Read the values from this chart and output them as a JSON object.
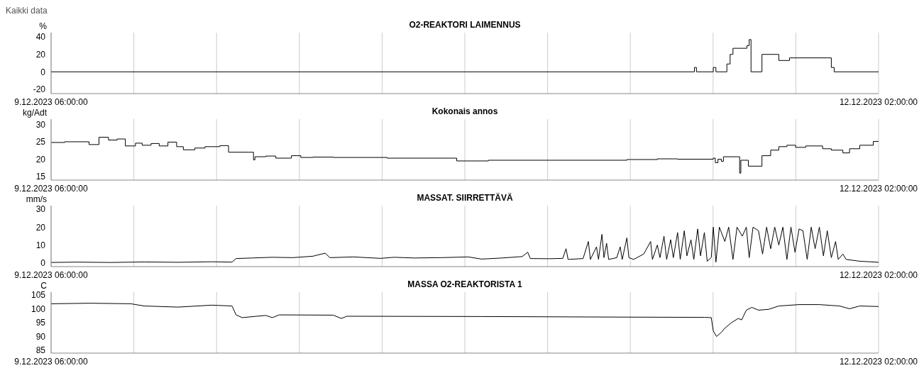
{
  "chart_data": [
    {
      "type": "step",
      "title": "O2-REAKTORI LAIMENNUS",
      "ylabel": "%",
      "annotations": [
        "Kaikki data"
      ],
      "grid": "x",
      "xlim": [
        "2023-12-09T06:00",
        "2023-12-12T02:00"
      ],
      "xticks": [
        {
          "value": "2023-12-09T06:00",
          "label": "9.12.2023 06:00:00"
        },
        {
          "value": "2023-12-09T12:48",
          "label": null
        },
        {
          "value": "2023-12-09T19:36",
          "label": null
        },
        {
          "value": "2023-12-10T02:24",
          "label": null
        },
        {
          "value": "2023-12-10T09:12",
          "label": null
        },
        {
          "value": "2023-12-10T16:00",
          "label": null
        },
        {
          "value": "2023-12-10T22:48",
          "label": null
        },
        {
          "value": "2023-12-11T05:36",
          "label": null
        },
        {
          "value": "2023-12-11T12:24",
          "label": null
        },
        {
          "value": "2023-12-11T19:12",
          "label": null
        },
        {
          "value": "2023-12-12T02:00",
          "label": "12.12.2023 02:00:00"
        }
      ],
      "ylim": [
        -25,
        45
      ],
      "yticks": [
        -20,
        0,
        20,
        40
      ],
      "x": [
        "2023-12-09T06:00",
        "2023-12-11T10:52",
        "2023-12-11T11:02",
        "2023-12-11T12:25",
        "2023-12-11T12:38",
        "2023-12-11T13:32",
        "2023-12-11T13:48",
        "2023-12-11T14:02",
        "2023-12-11T15:11",
        "2023-12-11T15:22",
        "2023-12-11T15:31",
        "2023-12-11T16:25",
        "2023-12-11T17:48",
        "2023-12-11T18:41",
        "2023-12-11T22:07",
        "2023-12-11T22:21",
        "2023-12-12T02:00"
      ],
      "series": [
        {
          "color": "#000000",
          "values": [
            0,
            5,
            0,
            5,
            0,
            9,
            20,
            27,
            30,
            37,
            0,
            20,
            13,
            16,
            5,
            0,
            0
          ]
        }
      ]
    },
    {
      "type": "step",
      "title": "Kokonais annos",
      "ylabel": "kg/Adt",
      "grid": "x",
      "xlim": [
        "2023-12-09T06:00",
        "2023-12-12T02:00"
      ],
      "xticks": [
        {
          "value": "2023-12-09T06:00",
          "label": "9.12.2023 06:00:00"
        },
        {
          "value": "2023-12-09T12:48",
          "label": null
        },
        {
          "value": "2023-12-09T19:36",
          "label": null
        },
        {
          "value": "2023-12-10T02:24",
          "label": null
        },
        {
          "value": "2023-12-10T09:12",
          "label": null
        },
        {
          "value": "2023-12-10T16:00",
          "label": null
        },
        {
          "value": "2023-12-10T22:48",
          "label": null
        },
        {
          "value": "2023-12-11T05:36",
          "label": null
        },
        {
          "value": "2023-12-11T12:24",
          "label": null
        },
        {
          "value": "2023-12-11T19:12",
          "label": null
        },
        {
          "value": "2023-12-12T02:00",
          "label": "12.12.2023 02:00:00"
        }
      ],
      "ylim": [
        14,
        31.5
      ],
      "yticks": [
        15,
        20,
        25,
        30
      ],
      "x": [
        "2023-12-09T06:00",
        "2023-12-09T07:07",
        "2023-12-09T09:07",
        "2023-12-09T09:56",
        "2023-12-09T10:43",
        "2023-12-09T11:26",
        "2023-12-09T12:06",
        "2023-12-09T12:56",
        "2023-12-09T13:29",
        "2023-12-09T14:13",
        "2023-12-09T14:53",
        "2023-12-09T15:36",
        "2023-12-09T16:19",
        "2023-12-09T16:52",
        "2023-12-09T17:49",
        "2023-12-09T18:39",
        "2023-12-09T19:52",
        "2023-12-09T20:35",
        "2023-12-09T22:38",
        "2023-12-09T22:45",
        "2023-12-09T23:38",
        "2023-12-10T00:28",
        "2023-12-10T01:45",
        "2023-12-10T02:31",
        "2023-12-10T03:31",
        "2023-12-10T05:11",
        "2023-12-10T09:37",
        "2023-12-10T15:20",
        "2023-12-10T17:56",
        "2023-12-11T05:19",
        "2023-12-11T07:49",
        "2023-12-11T09:29",
        "2023-12-11T12:25",
        "2023-12-11T12:35",
        "2023-12-11T12:48",
        "2023-12-11T13:05",
        "2023-12-11T13:15",
        "2023-12-11T14:35",
        "2023-12-11T14:41",
        "2023-12-11T15:18",
        "2023-12-11T16:25",
        "2023-12-11T17:08",
        "2023-12-11T17:48",
        "2023-12-11T18:28",
        "2023-12-11T19:11",
        "2023-12-11T20:01",
        "2023-12-11T21:24",
        "2023-12-11T22:07",
        "2023-12-11T23:04",
        "2023-12-11T23:37",
        "2023-12-12T00:27",
        "2023-12-12T01:34",
        "2023-12-12T02:00"
      ],
      "series": [
        {
          "color": "#000000",
          "values": [
            24.8,
            25,
            24.2,
            26.3,
            25.5,
            25.8,
            23.8,
            24.6,
            24,
            24.5,
            23.8,
            24.9,
            23.6,
            22.7,
            23.2,
            23.6,
            23.9,
            22,
            19.8,
            20.7,
            20.9,
            20.3,
            21,
            20.5,
            20.6,
            20.5,
            20.3,
            19.5,
            19.7,
            19.9,
            20.1,
            20,
            20.3,
            19,
            20,
            19.4,
            20.7,
            16,
            19.7,
            18,
            21,
            22.6,
            23.6,
            24,
            23.4,
            23.8,
            23,
            22.6,
            21.8,
            23,
            24,
            25.1,
            25
          ]
        }
      ]
    },
    {
      "type": "line",
      "title": "MASSAT. SIIRRETTÄVÄ",
      "ylabel": "mm/s",
      "grid": "x",
      "xlim": [
        "2023-12-09T06:00",
        "2023-12-12T02:00"
      ],
      "xticks": [
        {
          "value": "2023-12-09T06:00",
          "label": "9.12.2023 06:00:00"
        },
        {
          "value": "2023-12-09T12:48",
          "label": null
        },
        {
          "value": "2023-12-09T19:36",
          "label": null
        },
        {
          "value": "2023-12-10T02:24",
          "label": null
        },
        {
          "value": "2023-12-10T09:12",
          "label": null
        },
        {
          "value": "2023-12-10T16:00",
          "label": null
        },
        {
          "value": "2023-12-10T22:48",
          "label": null
        },
        {
          "value": "2023-12-11T05:36",
          "label": null
        },
        {
          "value": "2023-12-11T12:24",
          "label": null
        },
        {
          "value": "2023-12-11T19:12",
          "label": null
        },
        {
          "value": "2023-12-12T02:00",
          "label": "12.12.2023 02:00:00"
        }
      ],
      "ylim": [
        -2,
        32
      ],
      "yticks": [
        0,
        10,
        20,
        30
      ],
      "x": [
        "2023-12-09T06:00",
        "2023-12-09T08:07",
        "2023-12-09T10:53",
        "2023-12-09T13:39",
        "2023-12-09T16:26",
        "2023-12-09T19:12",
        "2023-12-09T20:52",
        "2023-12-09T21:12",
        "2023-12-09T22:32",
        "2023-12-10T00:11",
        "2023-12-10T01:52",
        "2023-12-10T03:31",
        "2023-12-10T04:31",
        "2023-12-10T04:55",
        "2023-12-10T06:51",
        "2023-12-10T09:04",
        "2023-12-10T10:11",
        "2023-12-10T11:50",
        "2023-12-10T14:04",
        "2023-12-10T16:17",
        "2023-12-10T17:23",
        "2023-12-10T19:03",
        "2023-12-10T20:43",
        "2023-12-10T21:10",
        "2023-12-10T21:23",
        "2023-12-10T22:56",
        "2023-12-11T00:03",
        "2023-12-11T00:19",
        "2023-12-11T00:29",
        "2023-12-11T01:43",
        "2023-12-11T02:09",
        "2023-12-11T02:19",
        "2023-12-11T02:49",
        "2023-12-11T02:59",
        "2023-12-11T03:16",
        "2023-12-11T03:26",
        "2023-12-11T03:39",
        "2023-12-11T03:49",
        "2023-12-11T04:29",
        "2023-12-11T04:46",
        "2023-12-11T04:56",
        "2023-12-11T05:19",
        "2023-12-11T05:29",
        "2023-12-11T05:52",
        "2023-12-11T06:42",
        "2023-12-11T07:16",
        "2023-12-11T07:25",
        "2023-12-11T07:49",
        "2023-12-11T08:02",
        "2023-12-11T08:22",
        "2023-12-11T08:35",
        "2023-12-11T08:55",
        "2023-12-11T09:08",
        "2023-12-11T09:29",
        "2023-12-11T09:42",
        "2023-12-11T10:02",
        "2023-12-11T10:15",
        "2023-12-11T10:35",
        "2023-12-11T10:49",
        "2023-12-11T11:08",
        "2023-12-11T11:22",
        "2023-12-11T11:41",
        "2023-12-11T11:55",
        "2023-12-11T12:15",
        "2023-12-11T12:25",
        "2023-12-11T12:38",
        "2023-12-11T12:55",
        "2023-12-11T13:22",
        "2023-12-11T13:41",
        "2023-12-11T14:02",
        "2023-12-11T14:22",
        "2023-12-11T14:48",
        "2023-12-11T15:08",
        "2023-12-11T15:22",
        "2023-12-11T15:41",
        "2023-12-11T16:08",
        "2023-12-11T16:28",
        "2023-12-11T16:48",
        "2023-12-11T17:08",
        "2023-12-11T17:28",
        "2023-12-11T17:48",
        "2023-12-11T18:08",
        "2023-12-11T18:28",
        "2023-12-11T18:48",
        "2023-12-11T19:08",
        "2023-12-11T19:28",
        "2023-12-11T19:47",
        "2023-12-11T20:08",
        "2023-12-11T20:28",
        "2023-12-11T20:47",
        "2023-12-11T21:08",
        "2023-12-11T21:28",
        "2023-12-11T21:47",
        "2023-12-11T22:07",
        "2023-12-11T22:28",
        "2023-12-11T22:41",
        "2023-12-11T23:04",
        "2023-12-11T23:20",
        "2023-12-11T23:54",
        "2023-12-12T00:27",
        "2023-12-12T01:01",
        "2023-12-12T02:00"
      ],
      "series": [
        {
          "color": "#000000",
          "values": [
            0.3,
            0.5,
            0.3,
            0.6,
            0.4,
            0.7,
            0.5,
            2.5,
            2.8,
            3.2,
            3,
            3.8,
            5.5,
            3,
            3.4,
            2.6,
            3.2,
            2.8,
            3,
            3.4,
            2.2,
            2.8,
            3.6,
            6,
            2.5,
            2.4,
            2.6,
            8,
            2,
            2.5,
            12,
            2,
            9,
            2,
            16,
            3,
            11,
            2,
            3,
            9,
            2,
            14,
            3,
            2,
            5,
            12,
            2,
            10,
            3,
            15,
            2,
            13,
            3,
            17,
            2,
            18,
            4,
            13,
            2,
            19,
            4,
            17,
            1,
            3,
            20,
            0.5,
            20,
            12,
            20,
            2,
            20,
            15,
            20,
            3,
            20,
            18,
            5,
            20,
            8,
            20,
            10,
            20,
            2,
            20,
            6,
            19,
            18,
            2,
            20,
            8,
            20,
            4,
            18,
            3,
            12,
            2,
            5,
            2,
            1.5,
            1,
            0.8,
            0.4
          ]
        }
      ]
    },
    {
      "type": "line",
      "title": "MASSA O2-REAKTORISTA 1",
      "ylabel": "C",
      "grid": "x",
      "xlim": [
        "2023-12-09T06:00",
        "2023-12-12T02:00"
      ],
      "xticks": [
        {
          "value": "2023-12-09T06:00",
          "label": "9.12.2023 06:00:00"
        },
        {
          "value": "2023-12-09T12:48",
          "label": null
        },
        {
          "value": "2023-12-09T19:36",
          "label": null
        },
        {
          "value": "2023-12-10T02:24",
          "label": null
        },
        {
          "value": "2023-12-10T09:12",
          "label": null
        },
        {
          "value": "2023-12-10T16:00",
          "label": null
        },
        {
          "value": "2023-12-10T22:48",
          "label": null
        },
        {
          "value": "2023-12-11T05:36",
          "label": null
        },
        {
          "value": "2023-12-11T12:24",
          "label": null
        },
        {
          "value": "2023-12-11T19:12",
          "label": null
        },
        {
          "value": "2023-12-12T02:00",
          "label": "12.12.2023 02:00:00"
        }
      ],
      "ylim": [
        84,
        106
      ],
      "yticks": [
        85,
        90,
        95,
        100,
        105
      ],
      "x": [
        "2023-12-09T06:00",
        "2023-12-09T09:13",
        "2023-12-09T12:33",
        "2023-12-09T13:39",
        "2023-12-09T16:26",
        "2023-12-09T19:12",
        "2023-12-09T20:52",
        "2023-12-09T21:12",
        "2023-12-09T21:42",
        "2023-12-09T23:38",
        "2023-12-10T00:11",
        "2023-12-10T00:45",
        "2023-12-10T05:11",
        "2023-12-10T05:51",
        "2023-12-10T06:18",
        "2023-12-10T17:23",
        "2023-12-11T04:29",
        "2023-12-11T11:41",
        "2023-12-11T12:15",
        "2023-12-11T12:25",
        "2023-12-11T12:41",
        "2023-12-11T13:05",
        "2023-12-11T13:22",
        "2023-12-11T13:55",
        "2023-12-11T14:28",
        "2023-12-11T14:45",
        "2023-12-11T15:08",
        "2023-12-11T15:35",
        "2023-12-11T16:08",
        "2023-12-11T16:58",
        "2023-12-11T17:48",
        "2023-12-11T19:28",
        "2023-12-11T21:08",
        "2023-12-11T22:47",
        "2023-12-11T23:37",
        "2023-12-12T00:27",
        "2023-12-12T02:00"
      ],
      "series": [
        {
          "color": "#000000",
          "values": [
            101.8,
            102,
            101.8,
            101,
            100.6,
            101.3,
            101,
            97.8,
            96.8,
            97.6,
            96.8,
            97.8,
            97.7,
            96.5,
            97.3,
            97.2,
            97,
            96.9,
            96.8,
            92,
            90,
            91.5,
            93,
            95,
            96.5,
            96,
            99.5,
            100.5,
            99.5,
            99.8,
            101,
            101.5,
            101.5,
            101,
            100,
            101,
            100.8
          ]
        }
      ]
    }
  ]
}
